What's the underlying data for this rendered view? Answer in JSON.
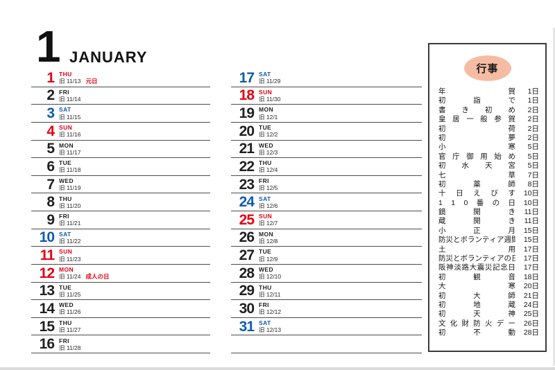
{
  "header": {
    "month_number": "1",
    "month_name": "JANUARY"
  },
  "colors": {
    "weekday": "#1f1f1f",
    "sunday_holiday_red": "#e50012",
    "saturday_blue": "#0e5cad",
    "divider": "#4a4a4a",
    "events_oval": "#f6bca3"
  },
  "calendar": {
    "old_date_prefix": "旧",
    "columns": [
      {
        "rows": [
          {
            "day": "1",
            "weekday": "THU",
            "old_date": "旧 11/13",
            "holiday": "元日",
            "color": "red"
          },
          {
            "day": "2",
            "weekday": "FRI",
            "old_date": "旧 11/14",
            "holiday": "",
            "color": "black"
          },
          {
            "day": "3",
            "weekday": "SAT",
            "old_date": "旧 11/15",
            "holiday": "",
            "color": "blue"
          },
          {
            "day": "4",
            "weekday": "SUN",
            "old_date": "旧 11/16",
            "holiday": "",
            "color": "red"
          },
          {
            "day": "5",
            "weekday": "MON",
            "old_date": "旧 11/17",
            "holiday": "",
            "color": "black"
          },
          {
            "day": "6",
            "weekday": "TUE",
            "old_date": "旧 11/18",
            "holiday": "",
            "color": "black"
          },
          {
            "day": "7",
            "weekday": "WED",
            "old_date": "旧 11/19",
            "holiday": "",
            "color": "black"
          },
          {
            "day": "8",
            "weekday": "THU",
            "old_date": "旧 11/20",
            "holiday": "",
            "color": "black"
          },
          {
            "day": "9",
            "weekday": "FRI",
            "old_date": "旧 11/21",
            "holiday": "",
            "color": "black"
          },
          {
            "day": "10",
            "weekday": "SAT",
            "old_date": "旧 11/22",
            "holiday": "",
            "color": "blue"
          },
          {
            "day": "11",
            "weekday": "SUN",
            "old_date": "旧 11/23",
            "holiday": "",
            "color": "red"
          },
          {
            "day": "12",
            "weekday": "MON",
            "old_date": "旧 11/24",
            "holiday": "成人の日",
            "color": "red"
          },
          {
            "day": "13",
            "weekday": "TUE",
            "old_date": "旧 11/25",
            "holiday": "",
            "color": "black"
          },
          {
            "day": "14",
            "weekday": "WED",
            "old_date": "旧 11/26",
            "holiday": "",
            "color": "black"
          },
          {
            "day": "15",
            "weekday": "THU",
            "old_date": "旧 11/27",
            "holiday": "",
            "color": "black"
          },
          {
            "day": "16",
            "weekday": "FRI",
            "old_date": "旧 11/28",
            "holiday": "",
            "color": "black"
          }
        ]
      },
      {
        "rows": [
          {
            "day": "17",
            "weekday": "SAT",
            "old_date": "旧 11/29",
            "holiday": "",
            "color": "blue"
          },
          {
            "day": "18",
            "weekday": "SUN",
            "old_date": "旧 11/30",
            "holiday": "",
            "color": "red"
          },
          {
            "day": "19",
            "weekday": "MON",
            "old_date": "旧 12/1",
            "holiday": "",
            "color": "black"
          },
          {
            "day": "20",
            "weekday": "TUE",
            "old_date": "旧 12/2",
            "holiday": "",
            "color": "black"
          },
          {
            "day": "21",
            "weekday": "WED",
            "old_date": "旧 12/3",
            "holiday": "",
            "color": "black"
          },
          {
            "day": "22",
            "weekday": "THU",
            "old_date": "旧 12/4",
            "holiday": "",
            "color": "black"
          },
          {
            "day": "23",
            "weekday": "FRI",
            "old_date": "旧 12/5",
            "holiday": "",
            "color": "black"
          },
          {
            "day": "24",
            "weekday": "SAT",
            "old_date": "旧 12/6",
            "holiday": "",
            "color": "blue"
          },
          {
            "day": "25",
            "weekday": "SUN",
            "old_date": "旧 12/7",
            "holiday": "",
            "color": "red"
          },
          {
            "day": "26",
            "weekday": "MON",
            "old_date": "旧 12/8",
            "holiday": "",
            "color": "black"
          },
          {
            "day": "27",
            "weekday": "TUE",
            "old_date": "旧 12/9",
            "holiday": "",
            "color": "black"
          },
          {
            "day": "28",
            "weekday": "WED",
            "old_date": "旧 12/10",
            "holiday": "",
            "color": "black"
          },
          {
            "day": "29",
            "weekday": "THU",
            "old_date": "旧 12/11",
            "holiday": "",
            "color": "black"
          },
          {
            "day": "30",
            "weekday": "FRI",
            "old_date": "旧 12/12",
            "holiday": "",
            "color": "black"
          },
          {
            "day": "31",
            "weekday": "SAT",
            "old_date": "旧 12/13",
            "holiday": "",
            "color": "blue"
          },
          {
            "day": "",
            "weekday": "",
            "old_date": "",
            "holiday": "",
            "color": "black"
          }
        ]
      }
    ]
  },
  "events_panel": {
    "title": "行事",
    "events": [
      {
        "name": "年賀",
        "day": "1日"
      },
      {
        "name": "初詣で",
        "day": "1日"
      },
      {
        "name": "書き初め",
        "day": "2日"
      },
      {
        "name": "皇居一般参賀",
        "day": "2日"
      },
      {
        "name": "初荷",
        "day": "2日"
      },
      {
        "name": "初夢",
        "day": "2日"
      },
      {
        "name": "小寒",
        "day": "5日"
      },
      {
        "name": "官庁御用始め",
        "day": "5日"
      },
      {
        "name": "初水天宮",
        "day": "5日"
      },
      {
        "name": "七草",
        "day": "7日"
      },
      {
        "name": "初薬師",
        "day": "8日"
      },
      {
        "name": "十日えびす",
        "day": "10日"
      },
      {
        "name": "110番の日",
        "day": "10日"
      },
      {
        "name": "鏡開き",
        "day": "11日"
      },
      {
        "name": "蔵開き",
        "day": "11日"
      },
      {
        "name": "小正月",
        "day": "15日"
      },
      {
        "name": "防災とボランティア週間",
        "day": "15日"
      },
      {
        "name": "土用",
        "day": "17日"
      },
      {
        "name": "防災とボランティアの日",
        "day": "17日"
      },
      {
        "name": "阪神淡路大震災記念日",
        "day": "17日"
      },
      {
        "name": "初観音",
        "day": "18日"
      },
      {
        "name": "大寒",
        "day": "20日"
      },
      {
        "name": "初大師",
        "day": "21日"
      },
      {
        "name": "初地蔵",
        "day": "24日"
      },
      {
        "name": "初天神",
        "day": "25日"
      },
      {
        "name": "文化財防火デー",
        "day": "26日"
      },
      {
        "name": "初不動",
        "day": "28日"
      }
    ]
  }
}
